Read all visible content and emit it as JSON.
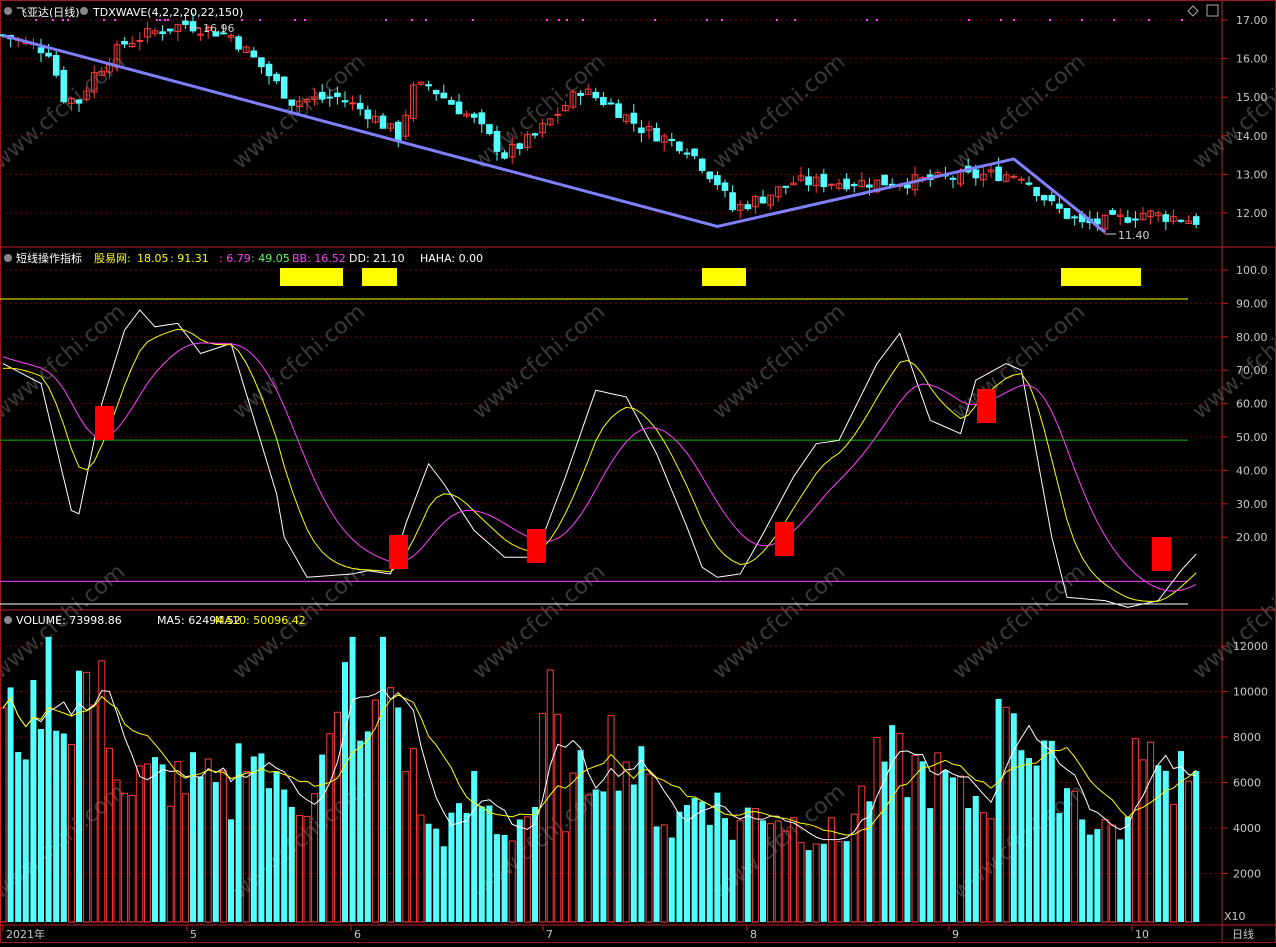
{
  "title_bar": {
    "stock_name": "飞亚达(日线)",
    "indicator_name": "TDXWAVE(4,2,2,20,22,150)",
    "high_label": "16.96",
    "low_label": "11.40"
  },
  "price_axis": [
    "17.00",
    "16.00",
    "15.00",
    "14.00",
    "13.00",
    "12.00"
  ],
  "indicator_header": {
    "name": "短线操作指标",
    "source": "股易网:",
    "v1": "18.05",
    "v2": ": 91.31",
    "v3": ": 6.79",
    "v4": ": 49.05",
    "bb": "BB: 16.52",
    "dd": "DD: 21.10",
    "haha": "HAHA: 0.00"
  },
  "indicator_axis": [
    "100.0",
    "90.00",
    "80.00",
    "70.00",
    "60.00",
    "50.00",
    "40.00",
    "30.00",
    "20.00"
  ],
  "volume_header": {
    "volume": "VOLUME: 73998.86",
    "ma5": "MA5: 62494.52",
    "ma10": "MA10: 50096.42"
  },
  "volume_axis": [
    "12000",
    "10000",
    "8000",
    "6000",
    "4000",
    "2000"
  ],
  "volume_unit": "X10",
  "date_axis": [
    "2021年",
    "5",
    "6",
    "7",
    "8",
    "9",
    "10"
  ],
  "period_button": "日线",
  "watermark": "www.cfchi.com",
  "colors": {
    "up": "#ff3b3b",
    "down": "#54ffff",
    "wave": "#8080ff",
    "yellow": "#ffff00",
    "magenta": "#ff40ff",
    "white": "#ffffff",
    "green_line": "#00c000",
    "grid": "#7a0000",
    "axis_border": "#c02020"
  }
}
